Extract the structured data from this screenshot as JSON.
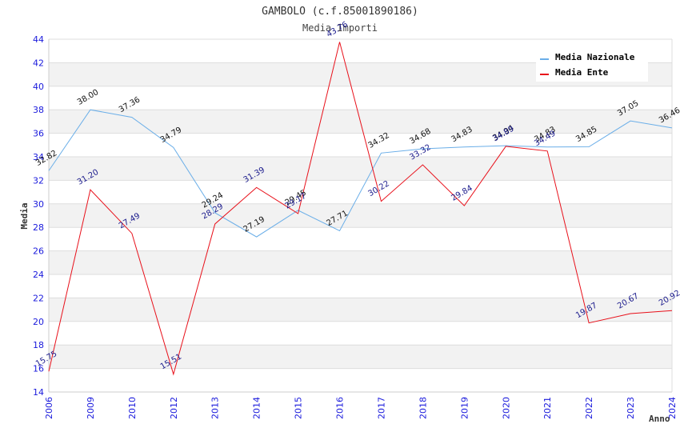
{
  "chart_data": {
    "type": "line",
    "title": "GAMBOLO (c.f.85001890186)",
    "subtitle": "Media Importi",
    "xlabel": "Anno",
    "ylabel": "Media",
    "ylim": [
      14,
      44
    ],
    "yticks": [
      14,
      16,
      18,
      20,
      22,
      24,
      26,
      28,
      30,
      32,
      34,
      36,
      38,
      40,
      42,
      44
    ],
    "grid": true,
    "legend_position": "top-right",
    "categories": [
      "2006",
      "2009",
      "2010",
      "2012",
      "2013",
      "2014",
      "2015",
      "2016",
      "2017",
      "2018",
      "2019",
      "2020",
      "2021",
      "2022",
      "2023",
      "2024"
    ],
    "series": [
      {
        "name": "Media Nazionale",
        "color": "#6aaee8",
        "label_color": "#111111",
        "values": [
          32.82,
          38.0,
          37.36,
          34.79,
          29.24,
          27.19,
          29.45,
          27.71,
          34.32,
          34.68,
          34.83,
          34.94,
          34.83,
          34.85,
          37.05,
          36.46
        ]
      },
      {
        "name": "Media Ente",
        "color": "#e8101a",
        "label_color": "#1a1a8c",
        "values": [
          15.75,
          31.2,
          27.49,
          15.51,
          28.29,
          31.39,
          29.17,
          43.76,
          30.22,
          33.32,
          29.84,
          34.89,
          34.49,
          19.87,
          20.67,
          20.92
        ]
      }
    ]
  }
}
